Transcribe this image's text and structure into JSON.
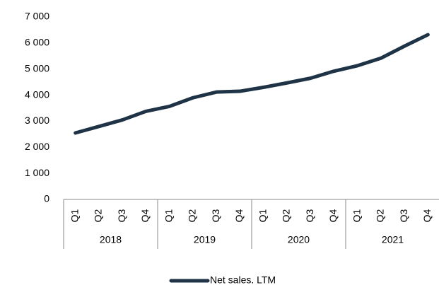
{
  "chart_data": {
    "type": "line",
    "categories": [
      "Q1",
      "Q2",
      "Q3",
      "Q4",
      "Q1",
      "Q2",
      "Q3",
      "Q4",
      "Q1",
      "Q2",
      "Q3",
      "Q4",
      "Q1",
      "Q2",
      "Q3",
      "Q4"
    ],
    "groups": [
      "2018",
      "2019",
      "2020",
      "2021"
    ],
    "series": [
      {
        "name": "Net sales. LTM",
        "color": "#1f3346",
        "values": [
          2550,
          2800,
          3050,
          3380,
          3570,
          3900,
          4120,
          4150,
          4300,
          4470,
          4650,
          4920,
          5130,
          5420,
          5880,
          6320
        ]
      }
    ],
    "ylim": [
      0,
      7000
    ],
    "yticks": [
      0,
      {
        "value": 1000,
        "label": "1 000"
      },
      {
        "value": 2000,
        "label": "2 000"
      },
      {
        "value": 3000,
        "label": "3 000"
      },
      {
        "value": 4000,
        "label": "4 000"
      },
      {
        "value": 5000,
        "label": "5 000"
      },
      {
        "value": 6000,
        "label": "6 000"
      },
      {
        "value": 7000,
        "label": "7 000"
      }
    ],
    "grid": false,
    "legend": "bottom"
  }
}
